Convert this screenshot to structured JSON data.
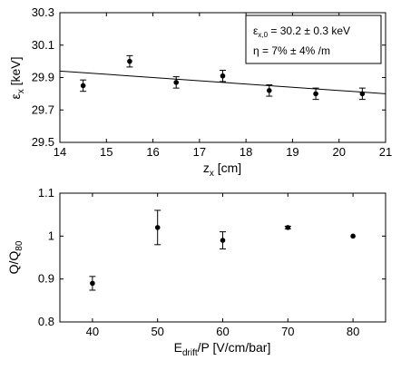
{
  "chart_data": [
    {
      "type": "scatter",
      "ylabel_main": "ε",
      "ylabel_sub": "x",
      "ylabel_unit": " [keV]",
      "xlabel_main": "z",
      "xlabel_sub": "x",
      "xlabel_unit": " [cm]",
      "xlim": [
        14,
        21
      ],
      "ylim": [
        29.5,
        30.3
      ],
      "xticks": [
        "14",
        "15",
        "16",
        "17",
        "18",
        "19",
        "20",
        "21"
      ],
      "yticks": [
        "29.5",
        "29.7",
        "29.9",
        "30.1",
        "30.3"
      ],
      "points": [
        {
          "x": 14.5,
          "y": 29.85,
          "err": 0.035
        },
        {
          "x": 15.5,
          "y": 30.0,
          "err": 0.035
        },
        {
          "x": 16.5,
          "y": 29.87,
          "err": 0.035
        },
        {
          "x": 17.5,
          "y": 29.91,
          "err": 0.035
        },
        {
          "x": 18.5,
          "y": 29.82,
          "err": 0.035
        },
        {
          "x": 19.5,
          "y": 29.8,
          "err": 0.035
        },
        {
          "x": 20.5,
          "y": 29.8,
          "err": 0.035
        }
      ],
      "fit_line": {
        "x": [
          14,
          21
        ],
        "y": [
          29.94,
          29.8
        ]
      },
      "annotation": {
        "line1_main": "ε",
        "line1_sub": "x,0",
        "line1_rest": " = 30.2 ± 0.3 keV",
        "line2": "η = 7% ± 4% /m"
      },
      "grid": false
    },
    {
      "type": "scatter",
      "ylabel_main": "Q/Q",
      "ylabel_sub": "80",
      "xlabel_main": "E",
      "xlabel_sub": "drift",
      "xlabel_unit": "/P [V/cm/bar]",
      "xlim": [
        35,
        85
      ],
      "ylim": [
        0.8,
        1.1
      ],
      "xticks": [
        "40",
        "50",
        "60",
        "70",
        "80"
      ],
      "yticks": [
        "0.8",
        "0.9",
        "1",
        "1.1"
      ],
      "points": [
        {
          "x": 40,
          "y": 0.89,
          "err": 0.016
        },
        {
          "x": 50,
          "y": 1.02,
          "err": 0.04
        },
        {
          "x": 60,
          "y": 0.99,
          "err": 0.02
        },
        {
          "x": 70,
          "y": 1.02,
          "err": 0.003
        },
        {
          "x": 80,
          "y": 1.0,
          "err": 0.0
        }
      ],
      "grid": false
    }
  ]
}
